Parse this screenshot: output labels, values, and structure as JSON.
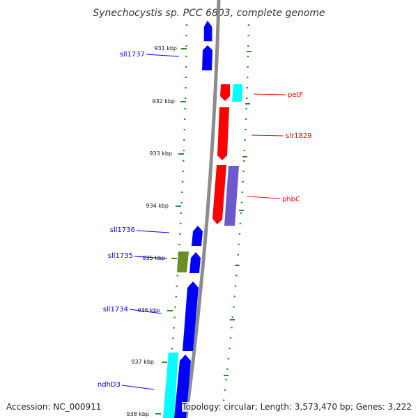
{
  "title": "Synechocystis sp. PCC 6803, complete genome",
  "accession": "Accession: NC_000911",
  "summary": "Topology: circular; Length: 3,573,470 bp; Genes: 3,222",
  "ticks": [
    {
      "label": "931 kbp"
    },
    {
      "label": "932 kbp"
    },
    {
      "label": "933 kbp"
    },
    {
      "label": "934 kbp"
    },
    {
      "label": "935 kbp"
    },
    {
      "label": "936 kbp"
    },
    {
      "label": "937 kbp"
    },
    {
      "label": "938 kbp"
    }
  ],
  "genes_minus": [
    {
      "label": "sll1737",
      "color": "#0000ff"
    },
    {
      "label": "sll1736",
      "color": "#0000ff"
    },
    {
      "label": "sll1735",
      "color": "#0000ff"
    },
    {
      "label": "sll1734",
      "color": "#0000ff"
    },
    {
      "label": "ndhD3",
      "color": "#0000ff"
    }
  ],
  "genes_plus": [
    {
      "label": "petF",
      "color": "#ff0000"
    },
    {
      "label": "slr1829",
      "color": "#ff0000"
    },
    {
      "label": "phbC",
      "color": "#ff0000"
    }
  ],
  "colors": {
    "minus_strand": "#0000ff",
    "plus_strand": "#ff0000",
    "cyan_feature": "#00ffff",
    "olive_feature": "#6b8e23",
    "purple_feature": "#6a5acd",
    "backbone": "#8c8c8c",
    "tick_marks": "#2e8b2e"
  }
}
